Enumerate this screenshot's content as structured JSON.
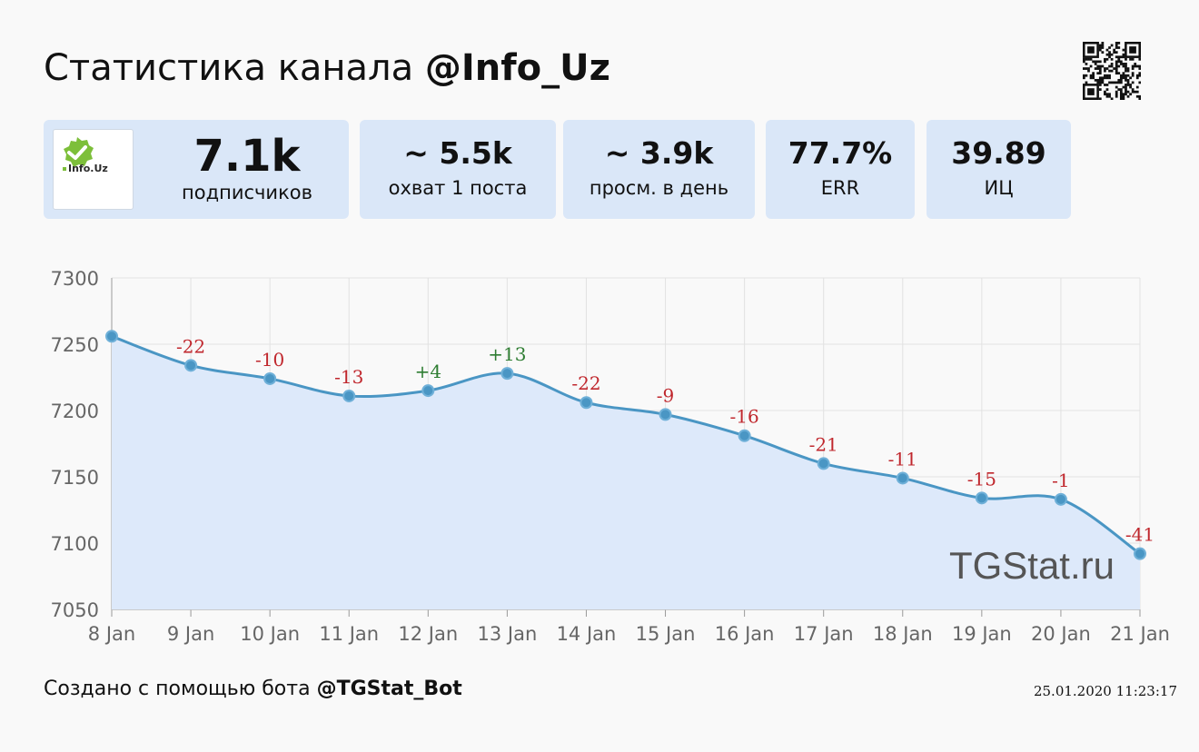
{
  "header": {
    "title_prefix": "Статистика канала ",
    "channel": "@Info_Uz"
  },
  "logo": {
    "text": "Info.Uz",
    "badge_color": "#7dbf3a"
  },
  "cards": [
    {
      "value": "7.1k",
      "label": "подписчиков"
    },
    {
      "value": "~ 5.5k",
      "label": "охват 1 поста"
    },
    {
      "value": "~ 3.9k",
      "label": "просм. в день"
    },
    {
      "value": "77.7%",
      "label": "ERR"
    },
    {
      "value": "39.89",
      "label": "ИЦ"
    }
  ],
  "chart_data": {
    "type": "area",
    "categories": [
      "8 Jan",
      "9 Jan",
      "10 Jan",
      "11 Jan",
      "12 Jan",
      "13 Jan",
      "14 Jan",
      "15 Jan",
      "16 Jan",
      "17 Jan",
      "18 Jan",
      "19 Jan",
      "20 Jan",
      "21 Jan"
    ],
    "values": [
      7256,
      7234,
      7224,
      7211,
      7215,
      7228,
      7206,
      7197,
      7181,
      7160,
      7149,
      7134,
      7133,
      7092
    ],
    "point_labels": [
      "",
      "-22",
      "-10",
      "-13",
      "+4",
      "+13",
      "-22",
      "-9",
      "-16",
      "-21",
      "-11",
      "-15",
      "-1",
      "-41"
    ],
    "ylim": [
      7050,
      7300
    ],
    "yticks": [
      7300,
      7250,
      7200,
      7150,
      7100,
      7050
    ],
    "grid": true,
    "colors": {
      "line": "#4a96c4",
      "fill": "#dde9fa",
      "negative": "#c0272d",
      "positive": "#2e7d32"
    },
    "watermark": "TGStat.ru"
  },
  "footer": {
    "text": "Создано с помощью бота ",
    "bot": "@TGStat_Bot",
    "timestamp": "25.01.2020 11:23:17"
  }
}
